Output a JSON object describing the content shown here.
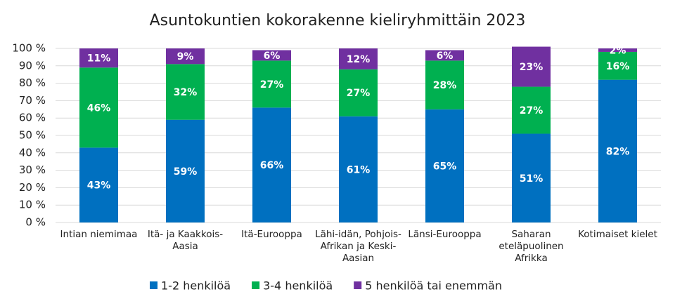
{
  "chart_data": {
    "type": "stacked_bar",
    "title": "Asuntokuntien kokorakenne kieliryhmittäin 2023",
    "categories": [
      "Intian niemimaa",
      "Itä- ja Kaakkois-Aasia",
      "Itä-Eurooppa",
      "Lähi-idän, Pohjois-Afrikan ja Keski-Aasian",
      "Länsi-Eurooppa",
      "Saharan eteläpuolinen Afrikka",
      "Kotimaiset kielet"
    ],
    "series": [
      {
        "name": "1-2 henkilöä",
        "color": "#0070c0",
        "values": [
          43,
          59,
          66,
          61,
          65,
          51,
          82
        ],
        "value_labels": [
          "43%",
          "59%",
          "66%",
          "61%",
          "65%",
          "51%",
          "82%"
        ]
      },
      {
        "name": "3-4 henkilöä",
        "color": "#00b050",
        "values": [
          46,
          32,
          27,
          27,
          28,
          27,
          16
        ],
        "value_labels": [
          "46%",
          "32%",
          "27%",
          "27%",
          "28%",
          "27%",
          "16%"
        ]
      },
      {
        "name": "5 henkilöä tai enemmän",
        "color": "#7030a0",
        "values": [
          11,
          9,
          6,
          12,
          6,
          23,
          2
        ],
        "value_labels": [
          "11%",
          "9%",
          "6%",
          "12%",
          "6%",
          "23%",
          "2%"
        ]
      }
    ],
    "ylim": [
      0,
      100
    ],
    "yticks": [
      {
        "value": 0,
        "label": "0 %"
      },
      {
        "value": 10,
        "label": "10 %"
      },
      {
        "value": 20,
        "label": "20 %"
      },
      {
        "value": 30,
        "label": "30 %"
      },
      {
        "value": 40,
        "label": "40 %"
      },
      {
        "value": 50,
        "label": "50 %"
      },
      {
        "value": 60,
        "label": "60 %"
      },
      {
        "value": 70,
        "label": "70 %"
      },
      {
        "value": 80,
        "label": "80 %"
      },
      {
        "value": 90,
        "label": "90 %"
      },
      {
        "value": 100,
        "label": "100 %"
      }
    ],
    "grid": true,
    "legend": "bottom"
  }
}
